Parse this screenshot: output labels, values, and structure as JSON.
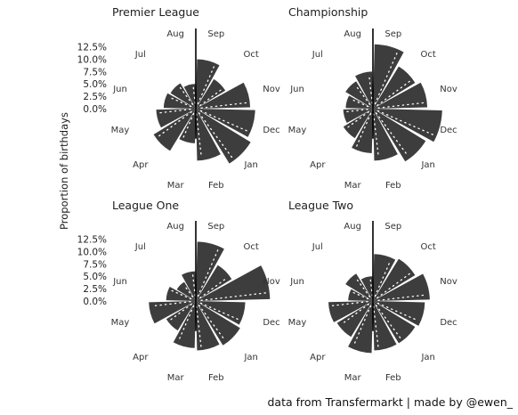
{
  "chart_data": {
    "type": "polar-bar",
    "ylabel": "Proportion of birthdays",
    "radial_ticks": [
      "12.5%",
      "10.0%",
      "7.5%",
      "5.0%",
      "2.5%",
      "0.0%"
    ],
    "radial_tick_values": [
      12.5,
      10.0,
      7.5,
      5.0,
      2.5,
      0.0
    ],
    "radial_max": 13.5,
    "months": [
      "Sep",
      "Oct",
      "Nov",
      "Dec",
      "Jan",
      "Feb",
      "Mar",
      "Apr",
      "May",
      "Jun",
      "Jul",
      "Aug"
    ],
    "reference_line": "Sep 1 (season start)",
    "bar_color": "#3d3d3d",
    "dot_color": "#ffffff",
    "panels": [
      {
        "title": "Premier League",
        "values": [
          10.0,
          7.0,
          11.0,
          12.0,
          13.0,
          10.5,
          7.0,
          10.0,
          8.0,
          6.5,
          6.0,
          5.0
        ]
      },
      {
        "title": "Championship",
        "values": [
          13.0,
          10.0,
          11.0,
          14.0,
          12.5,
          10.5,
          9.0,
          7.0,
          6.0,
          5.5,
          6.5,
          7.5
        ]
      },
      {
        "title": "League One",
        "values": [
          12.0,
          8.5,
          15.0,
          10.0,
          10.5,
          10.0,
          9.5,
          7.0,
          9.5,
          6.0,
          4.5,
          6.0
        ]
      },
      {
        "title": "League Two",
        "values": [
          9.5,
          10.0,
          11.5,
          10.5,
          10.0,
          10.0,
          10.5,
          8.5,
          9.0,
          5.0,
          6.5,
          5.0
        ]
      }
    ]
  },
  "caption": "data from Transfermarkt | made by @ewen_"
}
